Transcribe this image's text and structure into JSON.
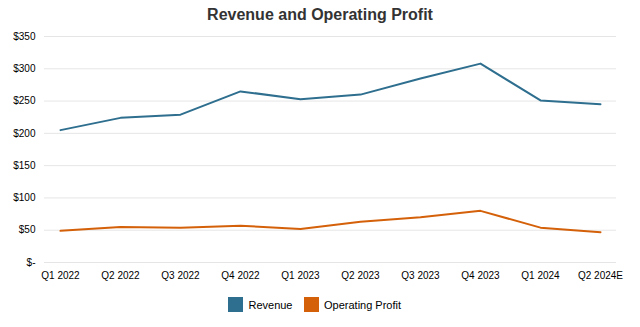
{
  "chart_data": {
    "type": "line",
    "title": "Revenue and Operating Profit",
    "categories": [
      "Q1 2022",
      "Q2 2022",
      "Q3 2022",
      "Q4 2022",
      "Q1 2023",
      "Q2 2023",
      "Q3 2023",
      "Q4 2023",
      "Q1 2024",
      "Q2 2024E"
    ],
    "series": [
      {
        "name": "Revenue",
        "color": "#2e6e8e",
        "values": [
          205,
          224,
          229,
          265,
          253,
          260,
          285,
          308,
          251,
          245
        ]
      },
      {
        "name": "Operating Profit",
        "color": "#d4610a",
        "values": [
          49,
          55,
          54,
          57,
          52,
          63,
          70,
          80,
          54,
          47
        ]
      }
    ],
    "ylim": [
      0,
      350
    ],
    "yticks": [
      {
        "value": 0,
        "label": "$-"
      },
      {
        "value": 50,
        "label": "$50"
      },
      {
        "value": 100,
        "label": "$100"
      },
      {
        "value": 150,
        "label": "$150"
      },
      {
        "value": 200,
        "label": "$200"
      },
      {
        "value": 250,
        "label": "$250"
      },
      {
        "value": 300,
        "label": "$300"
      },
      {
        "value": 350,
        "label": "$350"
      }
    ],
    "grid": true,
    "legend": "bottom"
  }
}
